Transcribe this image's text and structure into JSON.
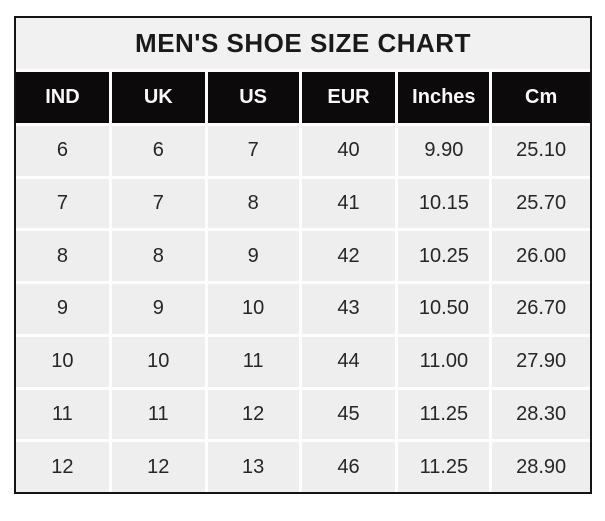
{
  "chart_data": {
    "type": "table",
    "title": "MEN'S SHOE SIZE CHART",
    "columns": [
      "IND",
      "UK",
      "US",
      "EUR",
      "Inches",
      "Cm"
    ],
    "rows": [
      [
        "6",
        "6",
        "7",
        "40",
        "9.90",
        "25.10"
      ],
      [
        "7",
        "7",
        "8",
        "41",
        "10.15",
        "25.70"
      ],
      [
        "8",
        "8",
        "9",
        "42",
        "10.25",
        "26.00"
      ],
      [
        "9",
        "9",
        "10",
        "43",
        "10.50",
        "26.70"
      ],
      [
        "10",
        "10",
        "11",
        "44",
        "11.00",
        "27.90"
      ],
      [
        "11",
        "11",
        "12",
        "45",
        "11.25",
        "28.30"
      ],
      [
        "12",
        "12",
        "13",
        "46",
        "11.25",
        "28.90"
      ]
    ],
    "layout": {
      "grid": "on",
      "header_position": "top"
    }
  },
  "colors": {
    "page_background": "#ffffff",
    "title_background": "#f2f1f1",
    "header_background": "#0c0a0b",
    "header_text": "#fbfbfb",
    "cell_background": "#efeeee",
    "cell_text": "#272525",
    "gridline": "#fdfdfd",
    "outer_border": "#151314"
  }
}
